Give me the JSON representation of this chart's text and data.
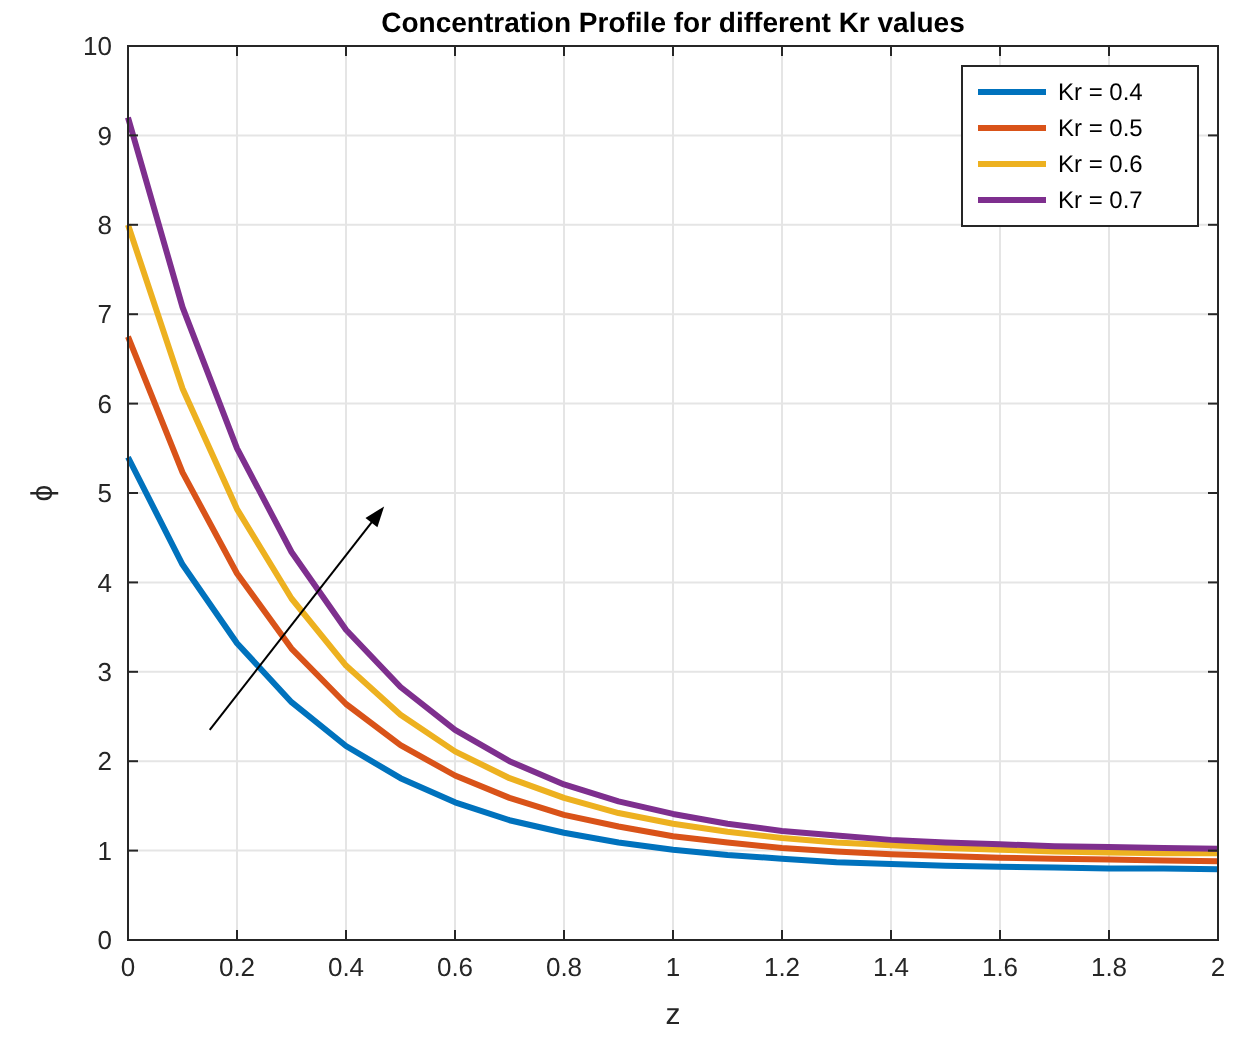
{
  "chart_data": {
    "type": "line",
    "title": "Concentration Profile for different Kr values",
    "xlabel": "z",
    "ylabel": "ϕ",
    "x": [
      0,
      0.1,
      0.2,
      0.3,
      0.4,
      0.5,
      0.6,
      0.7,
      0.8,
      0.9,
      1,
      1.1,
      1.2,
      1.3,
      1.4,
      1.5,
      1.6,
      1.7,
      1.8,
      1.9,
      2
    ],
    "series": [
      {
        "name": "Kr = 0.4",
        "color": "#0072bd",
        "values": [
          5.4,
          4.2,
          3.32,
          2.66,
          2.17,
          1.81,
          1.54,
          1.34,
          1.2,
          1.09,
          1.01,
          0.95,
          0.91,
          0.87,
          0.85,
          0.83,
          0.82,
          0.81,
          0.8,
          0.8,
          0.79
        ]
      },
      {
        "name": "Kr = 0.5",
        "color": "#d95319",
        "values": [
          6.75,
          5.23,
          4.1,
          3.26,
          2.64,
          2.18,
          1.84,
          1.59,
          1.4,
          1.27,
          1.16,
          1.09,
          1.03,
          0.99,
          0.96,
          0.94,
          0.92,
          0.91,
          0.9,
          0.89,
          0.88
        ]
      },
      {
        "name": "Kr = 0.6",
        "color": "#edb120",
        "values": [
          8.0,
          6.17,
          4.82,
          3.82,
          3.07,
          2.52,
          2.11,
          1.81,
          1.59,
          1.42,
          1.3,
          1.21,
          1.14,
          1.09,
          1.06,
          1.03,
          1.01,
          0.99,
          0.98,
          0.97,
          0.97
        ]
      },
      {
        "name": "Kr = 0.7",
        "color": "#7e2f8e",
        "values": [
          9.2,
          7.08,
          5.5,
          4.34,
          3.47,
          2.83,
          2.35,
          2.0,
          1.74,
          1.55,
          1.41,
          1.3,
          1.22,
          1.17,
          1.12,
          1.09,
          1.07,
          1.05,
          1.04,
          1.03,
          1.02
        ]
      }
    ],
    "xlim": [
      0,
      2
    ],
    "xticks": [
      0,
      0.2,
      0.4,
      0.6,
      0.8,
      1,
      1.2,
      1.4,
      1.6,
      1.8,
      2
    ],
    "ylim": [
      0,
      10
    ],
    "yticks": [
      0,
      1,
      2,
      3,
      4,
      5,
      6,
      7,
      8,
      9,
      10
    ],
    "grid": true,
    "legend": "top right",
    "marker": "none",
    "line_style": "solid"
  }
}
